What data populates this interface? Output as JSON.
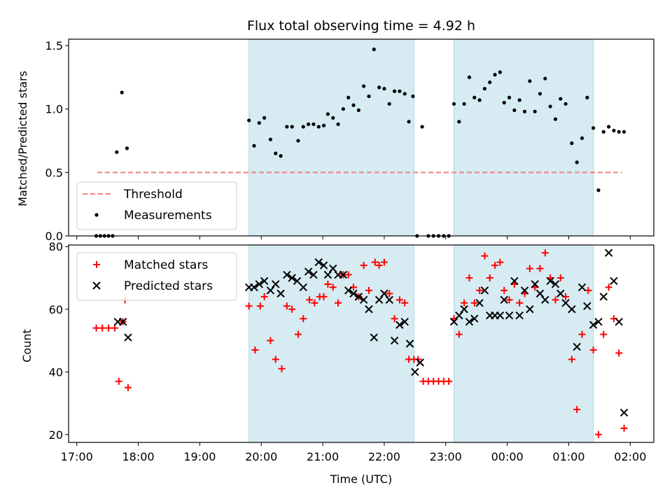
{
  "chart_data": [
    {
      "type": "scatter",
      "title": "Flux total observing time = 4.92 h",
      "xlabel": "",
      "ylabel": "Matched/Predicted stars",
      "xlim": [
        "16:52",
        "02:23"
      ],
      "ylim": [
        0,
        1.55
      ],
      "x_ticks": [
        "17:00",
        "18:00",
        "19:00",
        "20:00",
        "21:00",
        "22:00",
        "23:00",
        "00:00",
        "01:00",
        "02:00"
      ],
      "y_ticks": [
        "0.0",
        "0.5",
        "1.0",
        "1.5"
      ],
      "grid": false,
      "legend_position": "lower left",
      "shaded_intervals": [
        [
          "19:48",
          "22:29"
        ],
        [
          "23:08",
          "01:24"
        ]
      ],
      "threshold": {
        "name": "Threshold",
        "value": 0.5,
        "x": [
          "17:20",
          "01:52"
        ],
        "color": "#f08080"
      },
      "series": [
        {
          "name": "Measurements",
          "color": "#000000",
          "points": [
            [
              "17:19",
              0
            ],
            [
              "17:23",
              0
            ],
            [
              "17:27",
              0
            ],
            [
              "17:31",
              0
            ],
            [
              "17:35",
              0
            ],
            [
              "17:39",
              0.66
            ],
            [
              "17:44",
              1.13
            ],
            [
              "17:49",
              0.69
            ],
            [
              "19:48",
              0.91
            ],
            [
              "19:53",
              0.71
            ],
            [
              "19:58",
              0.89
            ],
            [
              "20:03",
              0.93
            ],
            [
              "20:09",
              0.76
            ],
            [
              "20:14",
              0.65
            ],
            [
              "20:19",
              0.63
            ],
            [
              "20:25",
              0.86
            ],
            [
              "20:30",
              0.86
            ],
            [
              "20:36",
              0.75
            ],
            [
              "20:41",
              0.86
            ],
            [
              "20:46",
              0.88
            ],
            [
              "20:51",
              0.88
            ],
            [
              "20:56",
              0.86
            ],
            [
              "21:01",
              0.87
            ],
            [
              "21:05",
              0.96
            ],
            [
              "21:10",
              0.93
            ],
            [
              "21:15",
              0.88
            ],
            [
              "21:20",
              1.0
            ],
            [
              "21:25",
              1.09
            ],
            [
              "21:30",
              1.03
            ],
            [
              "21:35",
              0.99
            ],
            [
              "21:40",
              1.18
            ],
            [
              "21:45",
              1.1
            ],
            [
              "21:50",
              1.47
            ],
            [
              "21:55",
              1.17
            ],
            [
              "22:00",
              1.16
            ],
            [
              "22:05",
              1.04
            ],
            [
              "22:10",
              1.14
            ],
            [
              "22:15",
              1.14
            ],
            [
              "22:20",
              1.12
            ],
            [
              "22:24",
              0.9
            ],
            [
              "22:28",
              1.1
            ],
            [
              "22:32",
              0
            ],
            [
              "22:37",
              0.86
            ],
            [
              "22:43",
              0
            ],
            [
              "22:48",
              0
            ],
            [
              "22:53",
              0
            ],
            [
              "22:58",
              0
            ],
            [
              "23:03",
              0
            ],
            [
              "23:08",
              1.04
            ],
            [
              "23:13",
              0.9
            ],
            [
              "23:18",
              1.04
            ],
            [
              "23:23",
              1.25
            ],
            [
              "23:28",
              1.09
            ],
            [
              "23:33",
              1.07
            ],
            [
              "23:38",
              1.16
            ],
            [
              "23:43",
              1.21
            ],
            [
              "23:48",
              1.27
            ],
            [
              "23:53",
              1.29
            ],
            [
              "23:57",
              1.05
            ],
            [
              "00:02",
              1.09
            ],
            [
              "00:07",
              0.99
            ],
            [
              "00:12",
              1.07
            ],
            [
              "00:17",
              0.98
            ],
            [
              "00:22",
              1.22
            ],
            [
              "00:27",
              0.98
            ],
            [
              "00:32",
              1.12
            ],
            [
              "00:37",
              1.24
            ],
            [
              "00:42",
              1.02
            ],
            [
              "00:47",
              0.92
            ],
            [
              "00:52",
              1.08
            ],
            [
              "00:57",
              1.04
            ],
            [
              "01:03",
              0.73
            ],
            [
              "01:08",
              0.58
            ],
            [
              "01:13",
              0.77
            ],
            [
              "01:18",
              1.09
            ],
            [
              "01:24",
              0.85
            ],
            [
              "01:29",
              0.36
            ],
            [
              "01:34",
              0.82
            ],
            [
              "01:39",
              0.86
            ],
            [
              "01:44",
              0.83
            ],
            [
              "01:49",
              0.82
            ],
            [
              "01:54",
              0.82
            ]
          ]
        }
      ],
      "legend": [
        "Threshold",
        "Measurements"
      ]
    },
    {
      "type": "scatter",
      "title": "",
      "xlabel": "Time (UTC)",
      "ylabel": "Count",
      "xlim": [
        "16:52",
        "02:23"
      ],
      "ylim": [
        17.5,
        80.5
      ],
      "x_ticks": [
        "17:00",
        "18:00",
        "19:00",
        "20:00",
        "21:00",
        "22:00",
        "23:00",
        "00:00",
        "01:00",
        "02:00"
      ],
      "y_ticks": [
        "20",
        "40",
        "60",
        "80"
      ],
      "grid": false,
      "legend_position": "upper left",
      "shaded_intervals": [
        [
          "19:48",
          "22:29"
        ],
        [
          "23:08",
          "01:24"
        ]
      ],
      "series": [
        {
          "name": "Matched stars",
          "marker": "plus",
          "color": "#ff0000",
          "points": [
            [
              "17:19",
              54
            ],
            [
              "17:25",
              54
            ],
            [
              "17:31",
              54
            ],
            [
              "17:37",
              54
            ],
            [
              "17:41",
              37
            ],
            [
              "17:45",
              56
            ],
            [
              "17:47",
              63
            ],
            [
              "17:50",
              35
            ],
            [
              "19:48",
              61
            ],
            [
              "19:54",
              47
            ],
            [
              "19:59",
              61
            ],
            [
              "20:03",
              64
            ],
            [
              "20:09",
              50
            ],
            [
              "20:14",
              44
            ],
            [
              "20:20",
              41
            ],
            [
              "20:25",
              61
            ],
            [
              "20:30",
              60
            ],
            [
              "20:36",
              52
            ],
            [
              "20:41",
              57
            ],
            [
              "20:47",
              63
            ],
            [
              "20:52",
              62
            ],
            [
              "20:57",
              64
            ],
            [
              "21:01",
              64
            ],
            [
              "21:05",
              68
            ],
            [
              "21:10",
              67
            ],
            [
              "21:15",
              62
            ],
            [
              "21:20",
              71
            ],
            [
              "21:25",
              71
            ],
            [
              "21:30",
              67
            ],
            [
              "21:35",
              64
            ],
            [
              "21:40",
              74
            ],
            [
              "21:45",
              66
            ],
            [
              "21:51",
              75
            ],
            [
              "21:55",
              74
            ],
            [
              "22:00",
              75
            ],
            [
              "22:05",
              65
            ],
            [
              "22:10",
              57
            ],
            [
              "22:15",
              63
            ],
            [
              "22:20",
              62
            ],
            [
              "22:24",
              44
            ],
            [
              "22:29",
              44
            ],
            [
              "22:33",
              44
            ],
            [
              "22:38",
              37
            ],
            [
              "22:43",
              37
            ],
            [
              "22:48",
              37
            ],
            [
              "22:53",
              37
            ],
            [
              "22:58",
              37
            ],
            [
              "23:03",
              37
            ],
            [
              "23:08",
              57
            ],
            [
              "23:13",
              52
            ],
            [
              "23:18",
              62
            ],
            [
              "23:23",
              70
            ],
            [
              "23:28",
              62
            ],
            [
              "23:33",
              66
            ],
            [
              "23:38",
              77
            ],
            [
              "23:43",
              70
            ],
            [
              "23:48",
              74
            ],
            [
              "23:53",
              75
            ],
            [
              "23:57",
              66
            ],
            [
              "00:02",
              63
            ],
            [
              "00:07",
              68
            ],
            [
              "00:12",
              62
            ],
            [
              "00:17",
              65
            ],
            [
              "00:22",
              73
            ],
            [
              "00:27",
              67
            ],
            [
              "00:32",
              73
            ],
            [
              "00:37",
              78
            ],
            [
              "00:42",
              70
            ],
            [
              "00:47",
              63
            ],
            [
              "00:52",
              70
            ],
            [
              "00:57",
              64
            ],
            [
              "01:03",
              44
            ],
            [
              "01:08",
              28
            ],
            [
              "01:13",
              52
            ],
            [
              "01:19",
              66
            ],
            [
              "01:24",
              47
            ],
            [
              "01:29",
              20
            ],
            [
              "01:34",
              52
            ],
            [
              "01:39",
              67
            ],
            [
              "01:44",
              57
            ],
            [
              "01:49",
              46
            ],
            [
              "01:54",
              22
            ]
          ]
        },
        {
          "name": "Predicted stars",
          "marker": "x",
          "color": "#000000",
          "points": [
            [
              "17:40",
              56
            ],
            [
              "17:45",
              56
            ],
            [
              "17:50",
              51
            ],
            [
              "19:48",
              67
            ],
            [
              "19:53",
              67
            ],
            [
              "19:58",
              68
            ],
            [
              "20:03",
              69
            ],
            [
              "20:09",
              66
            ],
            [
              "20:14",
              68
            ],
            [
              "20:19",
              65
            ],
            [
              "20:25",
              71
            ],
            [
              "20:30",
              70
            ],
            [
              "20:35",
              69
            ],
            [
              "20:41",
              67
            ],
            [
              "20:46",
              72
            ],
            [
              "20:51",
              71
            ],
            [
              "20:56",
              75
            ],
            [
              "21:01",
              74
            ],
            [
              "21:05",
              71
            ],
            [
              "21:10",
              73
            ],
            [
              "21:15",
              71
            ],
            [
              "21:20",
              71
            ],
            [
              "21:25",
              66
            ],
            [
              "21:30",
              65
            ],
            [
              "21:35",
              64
            ],
            [
              "21:40",
              63
            ],
            [
              "21:45",
              60
            ],
            [
              "21:50",
              51
            ],
            [
              "21:55",
              63
            ],
            [
              "22:00",
              65
            ],
            [
              "22:05",
              63
            ],
            [
              "22:10",
              50
            ],
            [
              "22:15",
              55
            ],
            [
              "22:20",
              56
            ],
            [
              "22:25",
              49
            ],
            [
              "22:30",
              40
            ],
            [
              "22:35",
              43
            ],
            [
              "23:08",
              56
            ],
            [
              "23:13",
              58
            ],
            [
              "23:18",
              60
            ],
            [
              "23:23",
              56
            ],
            [
              "23:28",
              57
            ],
            [
              "23:33",
              62
            ],
            [
              "23:38",
              66
            ],
            [
              "23:43",
              58
            ],
            [
              "23:48",
              58
            ],
            [
              "23:53",
              58
            ],
            [
              "23:57",
              63
            ],
            [
              "00:02",
              58
            ],
            [
              "00:07",
              69
            ],
            [
              "00:12",
              58
            ],
            [
              "00:17",
              66
            ],
            [
              "00:22",
              60
            ],
            [
              "00:27",
              68
            ],
            [
              "00:32",
              65
            ],
            [
              "00:37",
              63
            ],
            [
              "00:42",
              69
            ],
            [
              "00:47",
              68
            ],
            [
              "00:52",
              65
            ],
            [
              "00:57",
              62
            ],
            [
              "01:03",
              60
            ],
            [
              "01:08",
              48
            ],
            [
              "01:13",
              67
            ],
            [
              "01:18",
              61
            ],
            [
              "01:24",
              55
            ],
            [
              "01:29",
              56
            ],
            [
              "01:34",
              64
            ],
            [
              "01:39",
              78
            ],
            [
              "01:44",
              69
            ],
            [
              "01:49",
              56
            ],
            [
              "01:54",
              27
            ]
          ]
        }
      ],
      "legend": [
        "Matched stars",
        "Predicted stars"
      ]
    }
  ]
}
